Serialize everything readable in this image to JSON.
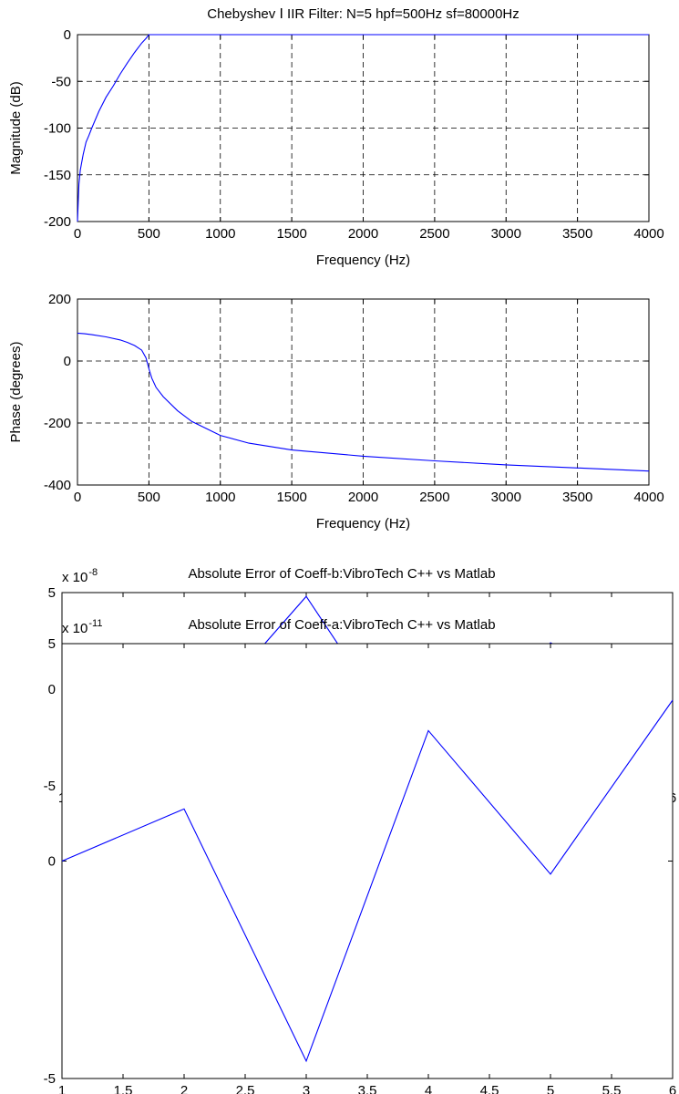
{
  "chart_data": [
    {
      "type": "line",
      "title": "Chebyshev Ⅰ IIR Filter: N=5 hpf=500Hz sf=80000Hz",
      "xlabel": "Frequency (Hz)",
      "ylabel": "Magnitude (dB)",
      "xlim": [
        0,
        4000
      ],
      "ylim": [
        -200,
        0
      ],
      "grid": true,
      "exponent_label": "",
      "xticks": [
        0,
        500,
        1000,
        1500,
        2000,
        2500,
        3000,
        3500,
        4000
      ],
      "yticks": [
        -200,
        -150,
        -100,
        -50,
        0
      ],
      "color": "#0000ff",
      "series": [
        {
          "x": [
            0,
            5,
            10,
            20,
            40,
            60,
            80,
            100,
            150,
            200,
            250,
            300,
            350,
            400,
            450,
            480,
            500,
            520,
            700,
            1000,
            1500,
            2000,
            2500,
            3000,
            3500,
            4000
          ],
          "values": [
            -200,
            -180,
            -160,
            -145,
            -128,
            -115,
            -108,
            -100,
            -82,
            -67,
            -55,
            -42,
            -30,
            -19,
            -9,
            -4,
            0,
            0,
            0,
            0,
            0,
            0,
            0,
            0,
            0,
            0
          ]
        }
      ]
    },
    {
      "type": "line",
      "title": "",
      "xlabel": "Frequency (Hz)",
      "ylabel": "Phase (degrees)",
      "xlim": [
        0,
        4000
      ],
      "ylim": [
        -400,
        200
      ],
      "grid": true,
      "exponent_label": "",
      "xticks": [
        0,
        500,
        1000,
        1500,
        2000,
        2500,
        3000,
        3500,
        4000
      ],
      "yticks": [
        -400,
        -200,
        0,
        200
      ],
      "color": "#0000ff",
      "series": [
        {
          "x": [
            0,
            50,
            100,
            200,
            300,
            350,
            400,
            450,
            480,
            500,
            520,
            550,
            600,
            700,
            800,
            1000,
            1200,
            1500,
            2000,
            2500,
            3000,
            3500,
            4000
          ],
          "values": [
            90,
            88,
            85,
            78,
            68,
            60,
            50,
            35,
            10,
            -25,
            -55,
            -85,
            -115,
            -160,
            -195,
            -240,
            -265,
            -287,
            -307,
            -322,
            -335,
            -345,
            -355
          ]
        }
      ]
    },
    {
      "type": "line",
      "title": "Absolute Error of Coeff-b:VibroTech C++ vs Matlab",
      "xlabel": "",
      "ylabel": "",
      "xlim": [
        1,
        6
      ],
      "ylim": [
        -5,
        5
      ],
      "grid": false,
      "exponent_label": "x 10",
      "exponent_power": "-8",
      "xticks": [
        1,
        1.5,
        2,
        2.5,
        3,
        3.5,
        4,
        4.5,
        5,
        5.5,
        6
      ],
      "yticks": [
        -5,
        0,
        5
      ],
      "color": "#0000ff",
      "series": [
        {
          "x": [
            1,
            2,
            3,
            4,
            5,
            6
          ],
          "values": [
            0.5,
            -2.4,
            4.8,
            -4.7,
            2.4,
            -0.5
          ]
        }
      ]
    },
    {
      "type": "line",
      "title": "Absolute Error of Coeff-a:VibroTech C++ vs Matlab",
      "xlabel": "",
      "ylabel": "",
      "xlim": [
        1,
        6
      ],
      "ylim": [
        -5,
        5
      ],
      "grid": false,
      "exponent_label": "x 10",
      "exponent_power": "-11",
      "xticks": [
        1,
        1.5,
        2,
        2.5,
        3,
        3.5,
        4,
        4.5,
        5,
        5.5,
        6
      ],
      "yticks": [
        -5,
        0,
        5
      ],
      "color": "#0000ff",
      "series": [
        {
          "x": [
            1,
            2,
            3,
            4,
            5,
            6
          ],
          "values": [
            0,
            1.2,
            -4.6,
            3.0,
            -0.3,
            3.7
          ]
        }
      ]
    }
  ]
}
